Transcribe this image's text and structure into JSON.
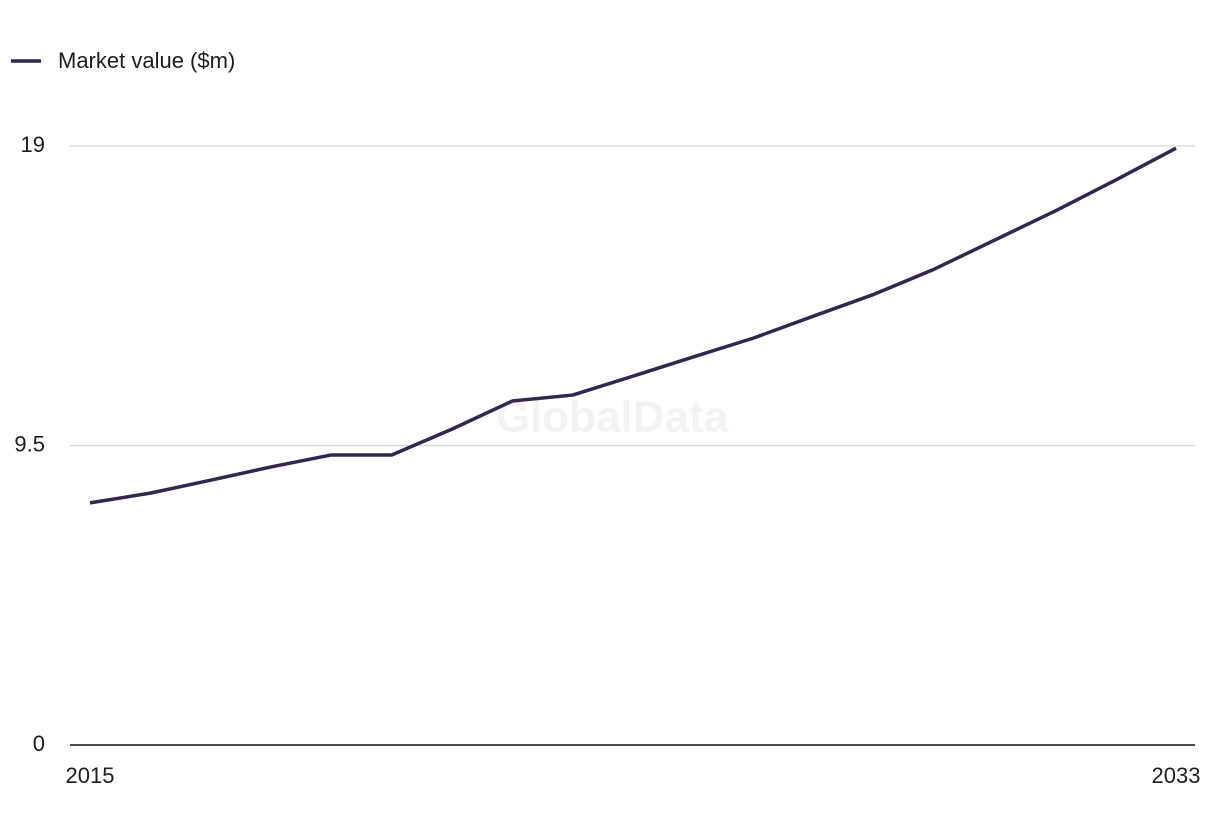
{
  "chart_data": {
    "type": "line",
    "legend_label": "Market value ($m)",
    "watermark": "GlobalData",
    "x": [
      2015,
      2016,
      2017,
      2018,
      2019,
      2020,
      2021,
      2022,
      2023,
      2024,
      2025,
      2026,
      2027,
      2028,
      2029,
      2030,
      2031,
      2032,
      2033
    ],
    "series": [
      {
        "name": "Market value ($m)",
        "color": "#35254f",
        "values": [
          7.68,
          7.99,
          8.4,
          8.82,
          9.2,
          9.2,
          10.02,
          10.91,
          11.1,
          11.7,
          12.31,
          12.91,
          13.61,
          14.3,
          15.1,
          16.02,
          16.94,
          17.92,
          18.93
        ]
      }
    ],
    "xlim": [
      2015,
      2033
    ],
    "xticks": [
      2015,
      2033
    ],
    "ylim": [
      0,
      19
    ],
    "yticks": [
      0,
      9.5,
      19
    ],
    "grid": true,
    "legend": "top-left"
  }
}
